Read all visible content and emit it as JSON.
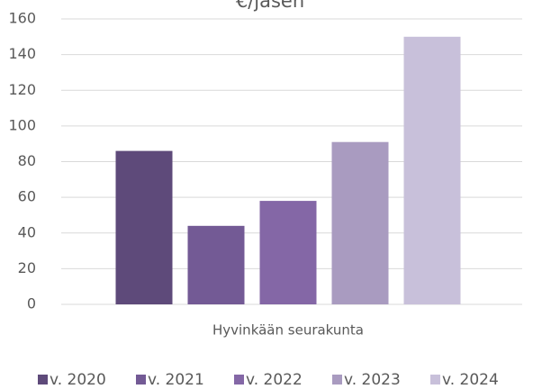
{
  "chart_data": {
    "type": "bar",
    "title": "€/jäsen",
    "categories": [
      "Hyvinkään seurakunta"
    ],
    "series": [
      {
        "name": "v. 2020",
        "color": "#5e4a7a",
        "values": [
          86
        ]
      },
      {
        "name": "v. 2021",
        "color": "#735a95",
        "values": [
          44
        ]
      },
      {
        "name": "v. 2022",
        "color": "#8467a6",
        "values": [
          58
        ]
      },
      {
        "name": "v. 2023",
        "color": "#a99bc0",
        "values": [
          91
        ]
      },
      {
        "name": "v. 2024",
        "color": "#c8c0da",
        "values": [
          150
        ]
      }
    ],
    "ylim": [
      0,
      160
    ],
    "yticks": [
      0,
      20,
      40,
      60,
      80,
      100,
      120,
      140,
      160
    ],
    "grid": true,
    "legend": "bottom"
  }
}
